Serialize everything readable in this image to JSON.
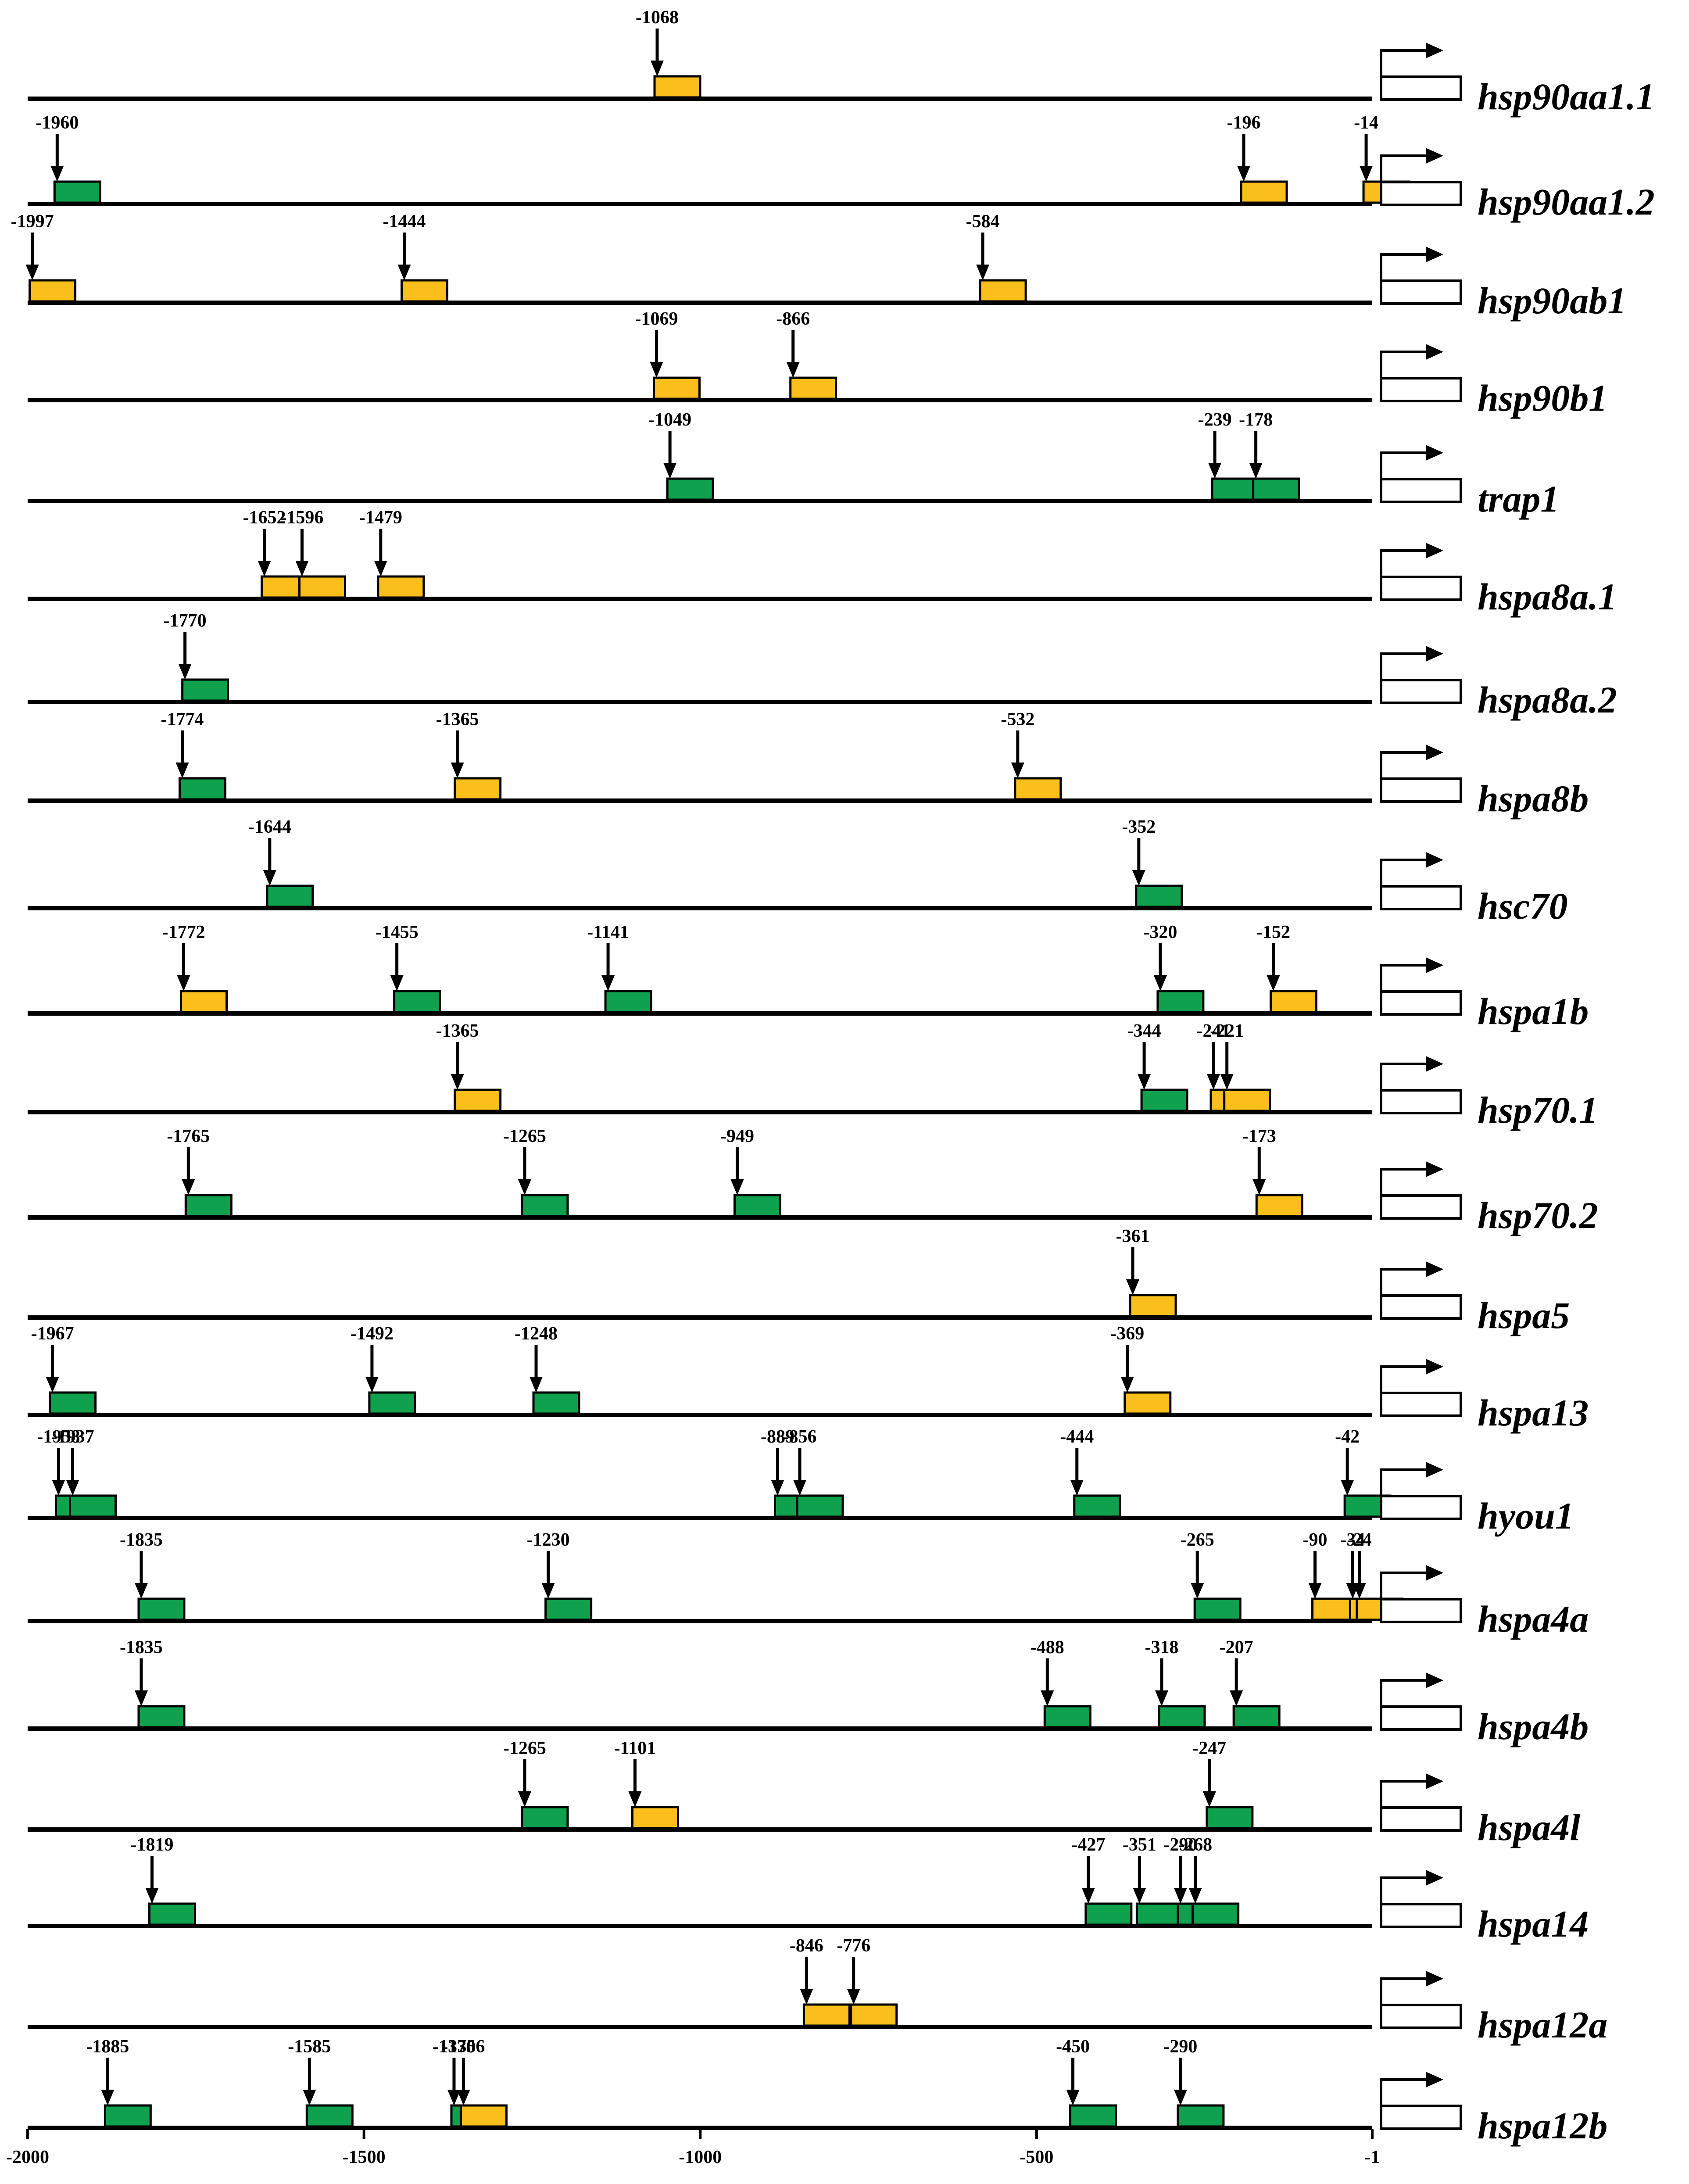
{
  "figure": {
    "colors": {
      "green": "#0fa14d",
      "yellow": "#fbbf1c",
      "line": "#000000"
    },
    "axis": {
      "range": [
        -2000,
        -1
      ],
      "ticks": [
        -2000,
        -1500,
        -1000,
        -500,
        -1
      ],
      "tick_labels": [
        "-2000",
        "-1500",
        "-1000",
        "-500",
        "-1"
      ]
    },
    "genes": [
      {
        "name": "hsp90aa1.1",
        "sites": [
          {
            "pos": -1068,
            "label": "-1068",
            "type": "yellow"
          }
        ]
      },
      {
        "name": "hsp90aa1.2",
        "sites": [
          {
            "pos": -1960,
            "label": "-1960",
            "type": "green"
          },
          {
            "pos": -196,
            "label": "-196",
            "type": "yellow"
          },
          {
            "pos": -14,
            "label": "-14",
            "type": "yellow"
          }
        ]
      },
      {
        "name": "hsp90ab1",
        "sites": [
          {
            "pos": -1997,
            "label": "-1997",
            "type": "yellow"
          },
          {
            "pos": -1444,
            "label": "-1444",
            "type": "yellow"
          },
          {
            "pos": -584,
            "label": "-584",
            "type": "yellow"
          }
        ]
      },
      {
        "name": "hsp90b1",
        "sites": [
          {
            "pos": -1069,
            "label": "-1069",
            "type": "yellow"
          },
          {
            "pos": -866,
            "label": "-866",
            "type": "yellow"
          }
        ]
      },
      {
        "name": "trap1",
        "sites": [
          {
            "pos": -1049,
            "label": "-1049",
            "type": "green"
          },
          {
            "pos": -239,
            "label": "-239",
            "type": "green"
          },
          {
            "pos": -178,
            "label": "-178",
            "type": "green"
          }
        ]
      },
      {
        "name": "hspa8a.1",
        "sites": [
          {
            "pos": -1652,
            "label": "-1652",
            "type": "yellow"
          },
          {
            "pos": -1596,
            "label": "-1596",
            "type": "yellow"
          },
          {
            "pos": -1479,
            "label": "-1479",
            "type": "yellow"
          }
        ]
      },
      {
        "name": "hspa8a.2",
        "sites": [
          {
            "pos": -1770,
            "label": "-1770",
            "type": "green"
          }
        ]
      },
      {
        "name": "hspa8b",
        "sites": [
          {
            "pos": -1774,
            "label": "-1774",
            "type": "green"
          },
          {
            "pos": -1365,
            "label": "-1365",
            "type": "yellow"
          },
          {
            "pos": -532,
            "label": "-532",
            "type": "yellow"
          }
        ]
      },
      {
        "name": "hsc70",
        "sites": [
          {
            "pos": -1644,
            "label": "-1644",
            "type": "green"
          },
          {
            "pos": -352,
            "label": "-352",
            "type": "green"
          }
        ]
      },
      {
        "name": "hspa1b",
        "sites": [
          {
            "pos": -1772,
            "label": "-1772",
            "type": "yellow"
          },
          {
            "pos": -1455,
            "label": "-1455",
            "type": "green"
          },
          {
            "pos": -1141,
            "label": "-1141",
            "type": "green"
          },
          {
            "pos": -320,
            "label": "-320",
            "type": "green"
          },
          {
            "pos": -152,
            "label": "-152",
            "type": "yellow"
          }
        ]
      },
      {
        "name": "hsp70.1",
        "sites": [
          {
            "pos": -1365,
            "label": "-1365",
            "type": "yellow"
          },
          {
            "pos": -344,
            "label": "-344",
            "type": "green"
          },
          {
            "pos": -241,
            "label": "-241",
            "type": "yellow"
          },
          {
            "pos": -221,
            "label": "-221",
            "type": "yellow"
          }
        ]
      },
      {
        "name": "hsp70.2",
        "sites": [
          {
            "pos": -1765,
            "label": "-1765",
            "type": "green"
          },
          {
            "pos": -1265,
            "label": "-1265",
            "type": "green"
          },
          {
            "pos": -949,
            "label": "-949",
            "type": "green"
          },
          {
            "pos": -173,
            "label": "-173",
            "type": "yellow"
          }
        ]
      },
      {
        "name": "hspa5",
        "sites": [
          {
            "pos": -361,
            "label": "-361",
            "type": "yellow"
          }
        ]
      },
      {
        "name": "hspa13",
        "sites": [
          {
            "pos": -1967,
            "label": "-1967",
            "type": "green"
          },
          {
            "pos": -1492,
            "label": "-1492",
            "type": "green"
          },
          {
            "pos": -1248,
            "label": "-1248",
            "type": "green"
          },
          {
            "pos": -369,
            "label": "-369",
            "type": "yellow"
          }
        ]
      },
      {
        "name": "hyou1",
        "sites": [
          {
            "pos": -1958,
            "label": "-1958",
            "type": "green"
          },
          {
            "pos": -1937,
            "label": "-1937",
            "type": "green"
          },
          {
            "pos": -889,
            "label": "-889",
            "type": "green"
          },
          {
            "pos": -856,
            "label": "-856",
            "type": "green"
          },
          {
            "pos": -444,
            "label": "-444",
            "type": "green"
          },
          {
            "pos": -42,
            "label": "-42",
            "type": "green"
          }
        ]
      },
      {
        "name": "hspa4a",
        "sites": [
          {
            "pos": -1835,
            "label": "-1835",
            "type": "green"
          },
          {
            "pos": -1230,
            "label": "-1230",
            "type": "green"
          },
          {
            "pos": -265,
            "label": "-265",
            "type": "green"
          },
          {
            "pos": -90,
            "label": "-90",
            "type": "yellow"
          },
          {
            "pos": -34,
            "label": "-34",
            "type": "yellow"
          },
          {
            "pos": -24,
            "label": "-24",
            "type": "yellow"
          }
        ]
      },
      {
        "name": "hspa4b",
        "sites": [
          {
            "pos": -1835,
            "label": "-1835",
            "type": "green"
          },
          {
            "pos": -488,
            "label": "-488",
            "type": "green"
          },
          {
            "pos": -318,
            "label": "-318",
            "type": "green"
          },
          {
            "pos": -207,
            "label": "-207",
            "type": "green"
          }
        ]
      },
      {
        "name": "hspa4l",
        "sites": [
          {
            "pos": -1265,
            "label": "-1265",
            "type": "green"
          },
          {
            "pos": -1101,
            "label": "-1101",
            "type": "yellow"
          },
          {
            "pos": -247,
            "label": "-247",
            "type": "green"
          }
        ]
      },
      {
        "name": "hspa14",
        "sites": [
          {
            "pos": -1819,
            "label": "-1819",
            "type": "green"
          },
          {
            "pos": -427,
            "label": "-427",
            "type": "green"
          },
          {
            "pos": -351,
            "label": "-351",
            "type": "green"
          },
          {
            "pos": -290,
            "label": "-290",
            "type": "green"
          },
          {
            "pos": -268,
            "label": "-268",
            "type": "green"
          }
        ]
      },
      {
        "name": "hspa12a",
        "sites": [
          {
            "pos": -846,
            "label": "-846",
            "type": "yellow"
          },
          {
            "pos": -776,
            "label": "-776",
            "type": "yellow"
          }
        ]
      },
      {
        "name": "hspa12b",
        "sites": [
          {
            "pos": -1885,
            "label": "-1885",
            "type": "green"
          },
          {
            "pos": -1585,
            "label": "-1585",
            "type": "green"
          },
          {
            "pos": -1370,
            "label": "-1370",
            "type": "green"
          },
          {
            "pos": -1356,
            "label": "-1356",
            "type": "yellow"
          },
          {
            "pos": -450,
            "label": "-450",
            "type": "green"
          },
          {
            "pos": -290,
            "label": "-290",
            "type": "green"
          }
        ]
      }
    ]
  }
}
